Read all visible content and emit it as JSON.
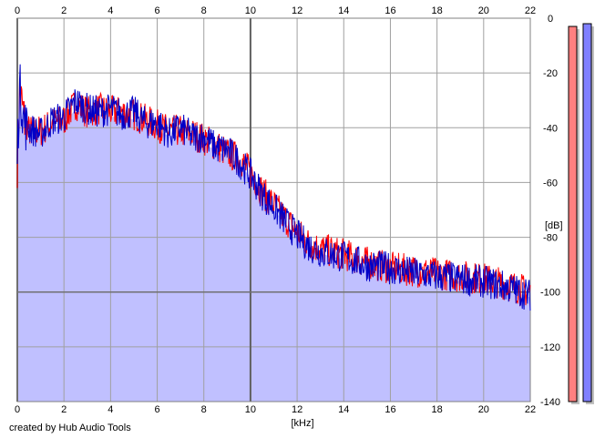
{
  "footer": {
    "credit": "created by Hub Audio Tools"
  },
  "colors": {
    "fill": "#c0c0ff",
    "left_channel": "#ff0000",
    "right_channel": "#0000c8",
    "grid": "#a0a0a0",
    "meter_left": "#ff8080",
    "meter_right": "#8080ff"
  },
  "chart_data": {
    "type": "line",
    "title": "",
    "xlabel": "[kHz]",
    "ylabel": "[dB]",
    "xlim": [
      0,
      22
    ],
    "ylim": [
      -140,
      0
    ],
    "x_ticks": [
      "0",
      "2",
      "4",
      "6",
      "8",
      "10",
      "12",
      "14",
      "16",
      "18",
      "20",
      "22"
    ],
    "y_ticks": [
      "0",
      "-20",
      "-40",
      "-60",
      "-80",
      "-100",
      "-120",
      "-140"
    ],
    "x_tick_values": [
      0,
      2,
      4,
      6,
      8,
      10,
      12,
      14,
      16,
      18,
      20,
      22
    ],
    "y_tick_values": [
      0,
      -20,
      -40,
      -60,
      -80,
      -100,
      -120,
      -140
    ],
    "grid": true,
    "legend": false,
    "x": [
      0,
      0.1,
      0.3,
      0.5,
      1,
      1.5,
      2,
      2.5,
      3,
      3.5,
      4,
      4.5,
      5,
      5.5,
      6,
      6.5,
      7,
      7.5,
      8,
      8.5,
      9,
      9.5,
      10,
      10.5,
      11,
      11.5,
      12,
      12.5,
      13,
      14,
      15,
      16,
      17,
      18,
      19,
      20,
      21,
      22
    ],
    "series": [
      {
        "values": [
          -50,
          -24,
          -35,
          -40,
          -40,
          -37,
          -36,
          -30,
          -33,
          -32,
          -33,
          -33,
          -34,
          -36,
          -38,
          -40,
          -40,
          -41,
          -43,
          -45,
          -48,
          -50,
          -55,
          -62,
          -67,
          -72,
          -77,
          -81,
          -83,
          -85,
          -88,
          -90,
          -91,
          -92,
          -93,
          -94,
          -96,
          -99
        ]
      },
      {
        "values": [
          -48,
          -23,
          -36,
          -39,
          -41,
          -36,
          -35,
          -29,
          -32,
          -33,
          -32,
          -34,
          -33,
          -37,
          -37,
          -41,
          -39,
          -42,
          -42,
          -46,
          -47,
          -51,
          -56,
          -63,
          -68,
          -73,
          -78,
          -82,
          -84,
          -86,
          -89,
          -90,
          -92,
          -93,
          -94,
          -95,
          -97,
          -100
        ]
      }
    ],
    "meters": {
      "left_db": -3,
      "right_db": -2
    }
  }
}
